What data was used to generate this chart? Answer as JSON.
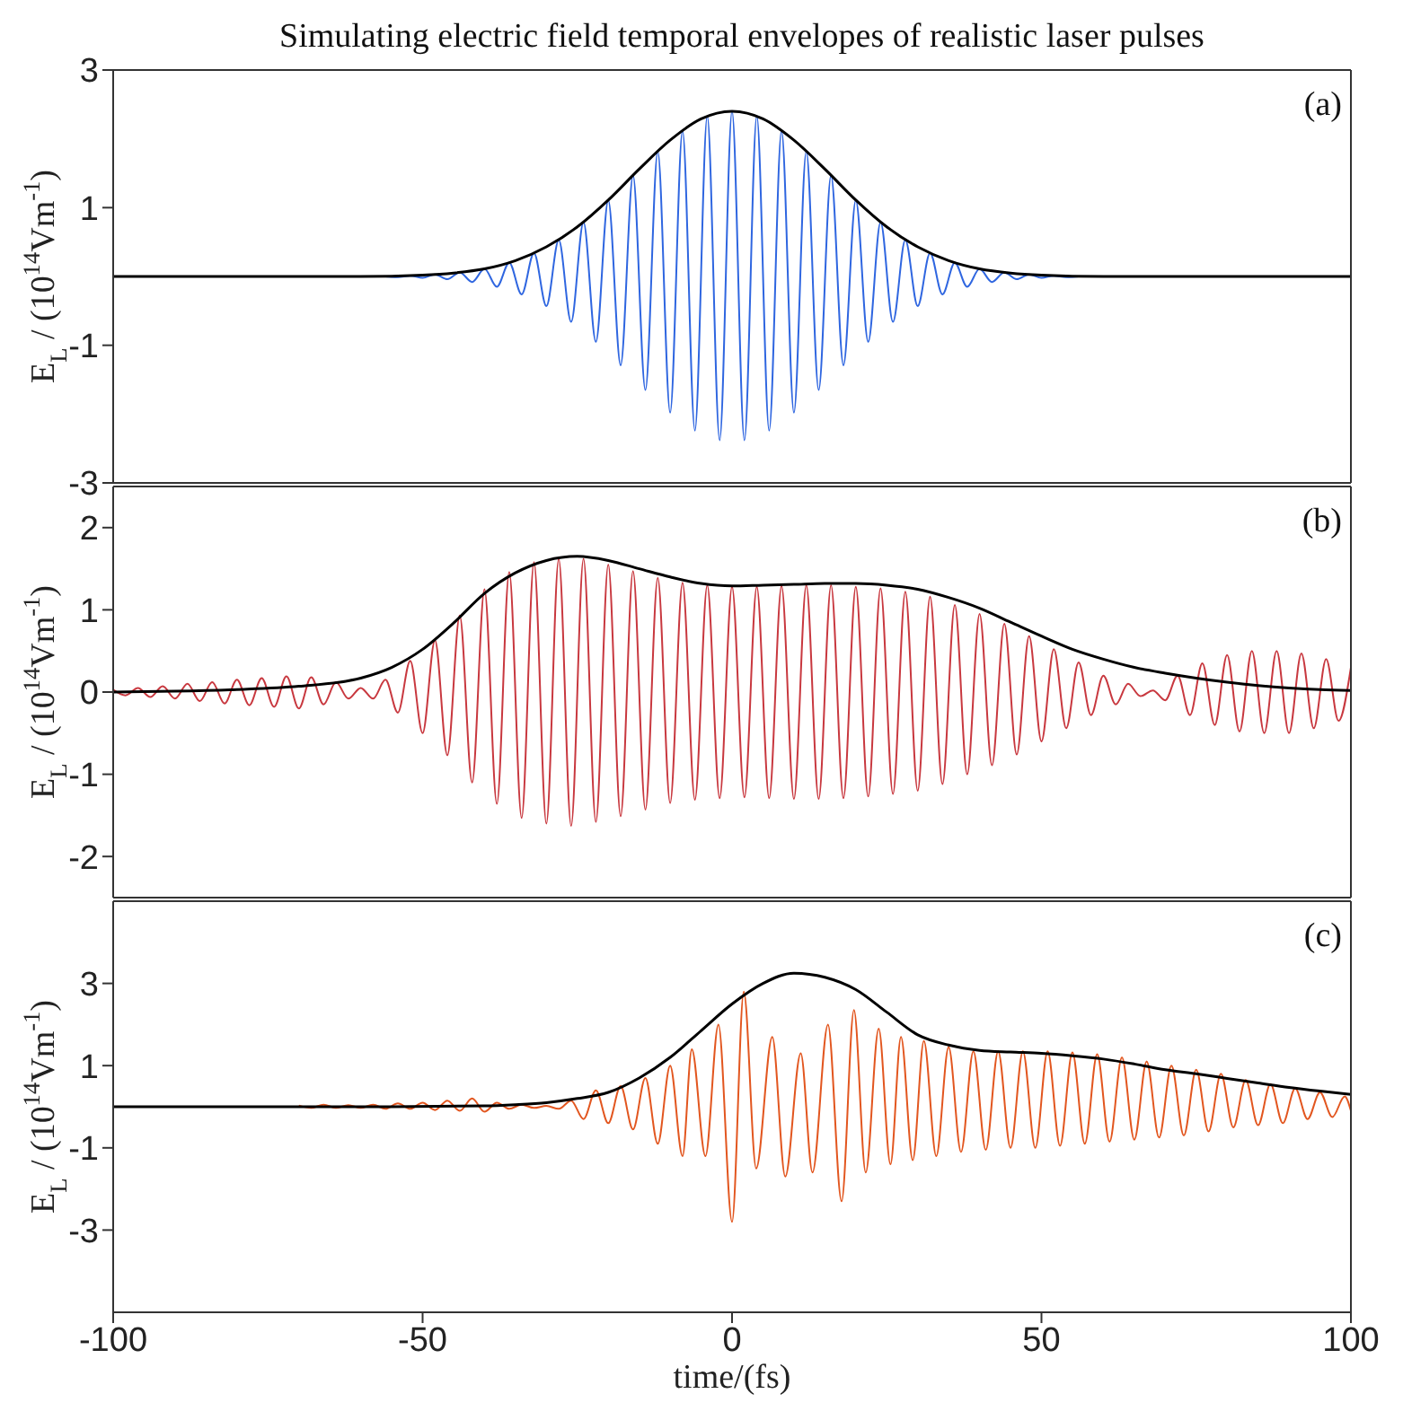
{
  "chart_data": [
    {
      "type": "line",
      "title": "Simulating electric field temporal envelopes of realistic laser pulses",
      "ylabel": "E$_{L}$ / (10$^{14}$Vm$^{-1}$)",
      "annotations": [
        "(a)"
      ],
      "xlim": [
        -100,
        100
      ],
      "xticks": [
        -100,
        -50,
        0,
        50,
        100
      ],
      "ylim": [
        -3,
        3
      ],
      "yticks": [
        -3,
        -1,
        1,
        3
      ],
      "tick_labels": "y",
      "series": [
        {
          "color": "#2f66e0",
          "x": [
            -58,
            -56,
            -54,
            -52,
            -50,
            -48,
            -46,
            -44,
            -42,
            -40,
            -38,
            -36,
            -34,
            -32,
            -30,
            -28,
            -26,
            -24,
            -22,
            -20,
            -18,
            -16,
            -14,
            -12,
            -10,
            -8,
            -6,
            -4,
            -2,
            0,
            2,
            4,
            6,
            8,
            10,
            12,
            14,
            16,
            18,
            20,
            22,
            24,
            26,
            28,
            30,
            32,
            34,
            36,
            38,
            40,
            42,
            44,
            46,
            48,
            50,
            52,
            54,
            56,
            58
          ],
          "values": [
            0,
            0,
            -0.01,
            0.01,
            -0.02,
            0.03,
            -0.04,
            0.06,
            -0.08,
            0.11,
            -0.15,
            0.2,
            -0.26,
            0.34,
            -0.43,
            0.53,
            -0.66,
            0.79,
            -0.95,
            1.11,
            -1.29,
            1.47,
            -1.65,
            1.82,
            -1.98,
            2.12,
            -2.24,
            2.33,
            -2.38,
            2.4,
            -2.38,
            2.33,
            -2.24,
            2.12,
            -1.98,
            1.82,
            -1.65,
            1.47,
            -1.29,
            1.11,
            -0.95,
            0.79,
            -0.66,
            0.53,
            -0.43,
            0.34,
            -0.26,
            0.2,
            -0.15,
            0.11,
            -0.08,
            0.06,
            -0.04,
            0.03,
            -0.02,
            0.01,
            -0.01,
            0,
            0
          ]
        },
        {
          "color": "#000000",
          "x": [
            -100,
            -80,
            -60,
            -50,
            -45,
            -40,
            -35,
            -30,
            -25,
            -20,
            -15,
            -10,
            -5,
            0,
            5,
            10,
            15,
            20,
            25,
            30,
            35,
            40,
            45,
            50,
            60,
            80,
            100
          ],
          "values": [
            0,
            0,
            0,
            0.02,
            0.05,
            0.11,
            0.23,
            0.43,
            0.72,
            1.11,
            1.56,
            1.98,
            2.29,
            2.4,
            2.29,
            1.98,
            1.56,
            1.11,
            0.72,
            0.43,
            0.23,
            0.11,
            0.05,
            0.02,
            0,
            0,
            0
          ]
        }
      ]
    },
    {
      "type": "line",
      "ylabel": "E$_{L}$ / (10$^{14}$Vm$^{-1}$)",
      "annotations": [
        "(b)"
      ],
      "xlim": [
        -100,
        100
      ],
      "xticks": [
        -100,
        -50,
        0,
        50,
        100
      ],
      "ylim": [
        -2.5,
        2.5
      ],
      "yticks": [
        -2,
        -1,
        0,
        1,
        2
      ],
      "tick_labels": "y",
      "series": [
        {
          "color": "#c8383f",
          "x": [
            -100,
            -98,
            -96,
            -94,
            -92,
            -90,
            -88,
            -86,
            -84,
            -82,
            -80,
            -78,
            -76,
            -74,
            -72,
            -70,
            -68,
            -66,
            -64,
            -62,
            -60,
            -58,
            -56,
            -54,
            -52,
            -50,
            -48,
            -46,
            -44,
            -42,
            -40,
            -38,
            -36,
            -34,
            -32,
            -30,
            -28,
            -26,
            -24,
            -22,
            -20,
            -18,
            -16,
            -14,
            -12,
            -10,
            -8,
            -6,
            -4,
            -2,
            0,
            2,
            4,
            6,
            8,
            10,
            12,
            14,
            16,
            18,
            20,
            22,
            24,
            26,
            28,
            30,
            32,
            34,
            36,
            38,
            40,
            42,
            44,
            46,
            48,
            50,
            52,
            54,
            56,
            58,
            60,
            62,
            64,
            66,
            68,
            70,
            72,
            74,
            76,
            78,
            80,
            82,
            84,
            86,
            88,
            90,
            92,
            94,
            96,
            98,
            100
          ],
          "values": [
            0.03,
            -0.04,
            0.05,
            -0.06,
            0.07,
            -0.08,
            0.1,
            -0.11,
            0.12,
            -0.14,
            0.15,
            -0.16,
            0.17,
            -0.18,
            0.19,
            -0.2,
            0.18,
            -0.15,
            0.12,
            -0.08,
            0.05,
            -0.08,
            0.15,
            -0.25,
            0.38,
            -0.5,
            0.63,
            -0.77,
            0.93,
            -1.1,
            1.25,
            -1.36,
            1.46,
            -1.53,
            1.58,
            -1.6,
            1.62,
            -1.63,
            1.62,
            -1.58,
            1.55,
            -1.51,
            1.47,
            -1.43,
            1.39,
            -1.35,
            1.33,
            -1.31,
            1.3,
            -1.29,
            1.28,
            -1.28,
            1.28,
            -1.29,
            1.29,
            -1.3,
            1.3,
            -1.3,
            1.3,
            -1.29,
            1.28,
            -1.27,
            1.26,
            -1.24,
            1.22,
            -1.2,
            1.16,
            -1.12,
            1.06,
            -1.0,
            0.95,
            -0.89,
            0.83,
            -0.76,
            0.68,
            -0.6,
            0.52,
            -0.44,
            0.36,
            -0.28,
            0.2,
            -0.15,
            0.1,
            -0.05,
            0.02,
            -0.1,
            0.2,
            -0.28,
            0.35,
            -0.4,
            0.45,
            -0.48,
            0.5,
            -0.5,
            0.5,
            -0.5,
            0.47,
            -0.44,
            0.4,
            -0.35,
            0.3
          ]
        },
        {
          "color": "#000000",
          "x": [
            -100,
            -90,
            -80,
            -70,
            -60,
            -55,
            -50,
            -45,
            -40,
            -35,
            -30,
            -25,
            -20,
            -15,
            -10,
            -5,
            0,
            5,
            10,
            15,
            20,
            25,
            30,
            35,
            40,
            45,
            50,
            55,
            60,
            65,
            70,
            75,
            80,
            85,
            90,
            95,
            100
          ],
          "values": [
            0,
            0.01,
            0.03,
            0.07,
            0.17,
            0.3,
            0.52,
            0.84,
            1.2,
            1.45,
            1.6,
            1.65,
            1.6,
            1.5,
            1.4,
            1.32,
            1.29,
            1.3,
            1.31,
            1.32,
            1.32,
            1.3,
            1.25,
            1.15,
            1.02,
            0.85,
            0.68,
            0.52,
            0.4,
            0.3,
            0.23,
            0.17,
            0.12,
            0.08,
            0.05,
            0.03,
            0.02
          ]
        }
      ]
    },
    {
      "type": "line",
      "xlabel": "time/(fs)",
      "ylabel": "E$_{L}$ / (10$^{14}$Vm$^{-1}$)",
      "annotations": [
        "(c)"
      ],
      "xlim": [
        -100,
        100
      ],
      "xticks": [
        -100,
        -50,
        0,
        50,
        100
      ],
      "ylim": [
        -5,
        5
      ],
      "yticks": [
        -3,
        -1,
        1,
        3
      ],
      "series": [
        {
          "color": "#e2561f",
          "x": [
            -70,
            -68,
            -66,
            -64,
            -62,
            -60,
            -58,
            -56,
            -54,
            -52,
            -50,
            -48,
            -46,
            -44,
            -42,
            -40,
            -38,
            -36,
            -34,
            -32,
            -30,
            -28,
            -26,
            -24,
            -22,
            -20,
            -18,
            -16,
            -14,
            -12,
            -10,
            -8,
            -6.5,
            -4.3,
            -2.2,
            0,
            1.9,
            3.9,
            6.5,
            8.6,
            11.1,
            13,
            15.5,
            17.7,
            19.7,
            21.6,
            23.7,
            25.6,
            27.3,
            29.2,
            31,
            33,
            35,
            37,
            39,
            41,
            43,
            45,
            47,
            49,
            51,
            53,
            55,
            57,
            59,
            61,
            63,
            65,
            67,
            69,
            71,
            73,
            75,
            77,
            79,
            81,
            83,
            85,
            87,
            89,
            91,
            93,
            95,
            97,
            99,
            100
          ],
          "values": [
            0.03,
            -0.03,
            0.05,
            -0.03,
            0.04,
            -0.03,
            0.05,
            -0.05,
            0.08,
            -0.05,
            0.1,
            -0.08,
            0.15,
            -0.1,
            0.2,
            -0.12,
            0.1,
            -0.05,
            0.05,
            -0.03,
            0.02,
            -0.05,
            0.15,
            -0.3,
            0.4,
            -0.4,
            0.5,
            -0.55,
            0.7,
            -0.9,
            1.0,
            -1.2,
            1.4,
            -1.2,
            2.0,
            -2.8,
            2.8,
            -1.5,
            1.7,
            -1.7,
            1.3,
            -1.6,
            2.0,
            -2.3,
            2.35,
            -1.6,
            1.9,
            -1.4,
            1.7,
            -1.3,
            1.6,
            -1.2,
            1.45,
            -1.1,
            1.35,
            -1.05,
            1.35,
            -1.0,
            1.35,
            -1.0,
            1.35,
            -0.95,
            1.32,
            -0.9,
            1.28,
            -0.85,
            1.2,
            -0.8,
            1.1,
            -0.75,
            1.0,
            -0.7,
            0.9,
            -0.6,
            0.8,
            -0.5,
            0.65,
            -0.45,
            0.55,
            -0.4,
            0.45,
            -0.3,
            0.35,
            -0.25,
            0.25,
            -0.1
          ]
        },
        {
          "color": "#000000",
          "x": [
            -100,
            -60,
            -40,
            -35,
            -30,
            -25,
            -20,
            -15,
            -10,
            -5,
            0,
            5,
            10,
            15,
            20,
            25,
            30,
            35,
            40,
            45,
            50,
            55,
            60,
            65,
            70,
            75,
            80,
            85,
            90,
            95,
            100
          ],
          "values": [
            0,
            0,
            0.02,
            0.05,
            0.1,
            0.2,
            0.35,
            0.7,
            1.2,
            1.85,
            2.5,
            3.0,
            3.25,
            3.15,
            2.85,
            2.3,
            1.75,
            1.5,
            1.37,
            1.33,
            1.3,
            1.24,
            1.16,
            1.04,
            0.9,
            0.8,
            0.69,
            0.58,
            0.47,
            0.38,
            0.3
          ]
        }
      ]
    }
  ]
}
